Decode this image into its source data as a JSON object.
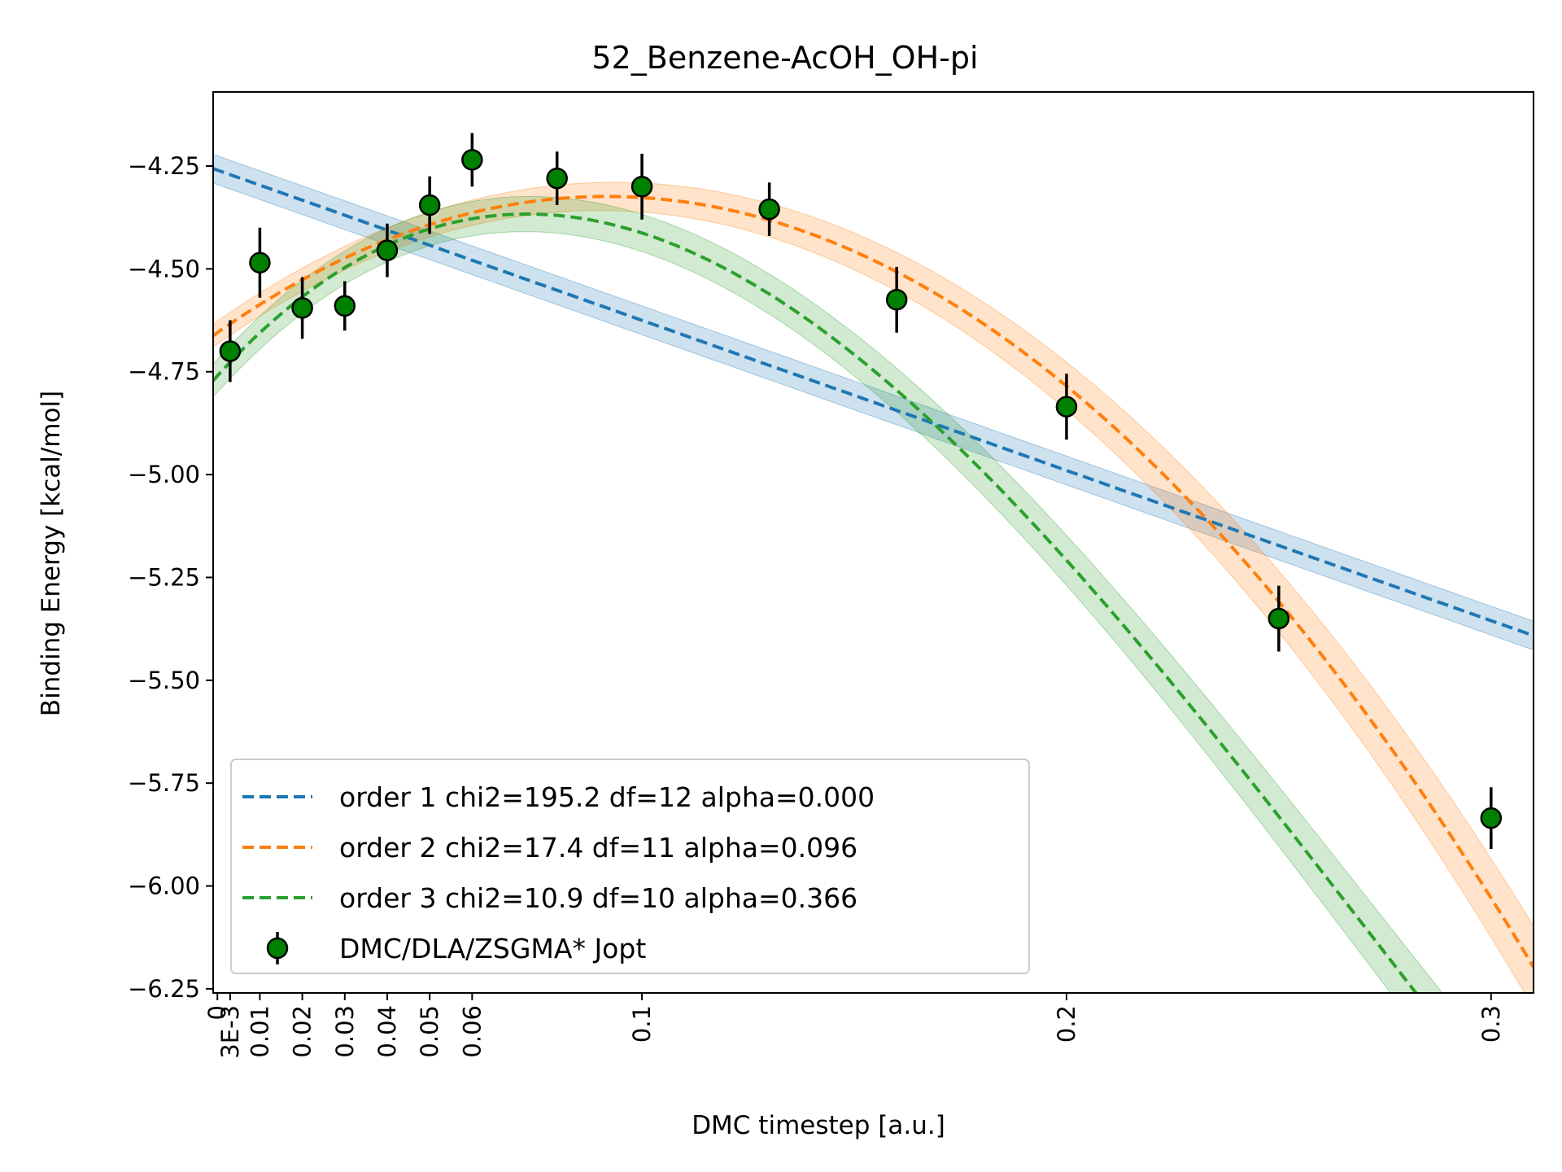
{
  "chart_data": {
    "type": "scatter",
    "title": "52_Benzene-AcOH_OH-pi",
    "xlabel": "DMC timestep [a.u.]",
    "ylabel": "Binding Energy [kcal/mol]",
    "xlim": [
      -0.001,
      0.31
    ],
    "ylim": [
      -6.26,
      -4.07
    ],
    "grid": false,
    "legend_position": "lower-left",
    "x_ticks": [
      {
        "value": 0,
        "label": "0"
      },
      {
        "value": 0.003,
        "label": "3E-3"
      },
      {
        "value": 0.01,
        "label": "0.01"
      },
      {
        "value": 0.02,
        "label": "0.02"
      },
      {
        "value": 0.03,
        "label": "0.03"
      },
      {
        "value": 0.04,
        "label": "0.04"
      },
      {
        "value": 0.05,
        "label": "0.05"
      },
      {
        "value": 0.06,
        "label": "0.06"
      },
      {
        "value": 0.1,
        "label": "0.1"
      },
      {
        "value": 0.2,
        "label": "0.2"
      },
      {
        "value": 0.3,
        "label": "0.3"
      }
    ],
    "y_ticks": [
      {
        "value": -4.25,
        "label": "−4.25"
      },
      {
        "value": -4.5,
        "label": "−4.50"
      },
      {
        "value": -4.75,
        "label": "−4.75"
      },
      {
        "value": -5.0,
        "label": "−5.00"
      },
      {
        "value": -5.25,
        "label": "−5.25"
      },
      {
        "value": -5.5,
        "label": "−5.50"
      },
      {
        "value": -5.75,
        "label": "−5.75"
      },
      {
        "value": -6.0,
        "label": "−6.00"
      },
      {
        "value": -6.25,
        "label": "−6.25"
      }
    ],
    "data_series": {
      "name": "DMC/DLA/ZSGMA* Jopt",
      "color": "#008000",
      "points": [
        {
          "x": 0.003,
          "y": -4.7,
          "err": 0.075
        },
        {
          "x": 0.01,
          "y": -4.485,
          "err": 0.085
        },
        {
          "x": 0.02,
          "y": -4.595,
          "err": 0.075
        },
        {
          "x": 0.03,
          "y": -4.59,
          "err": 0.06
        },
        {
          "x": 0.04,
          "y": -4.455,
          "err": 0.065
        },
        {
          "x": 0.05,
          "y": -4.345,
          "err": 0.07
        },
        {
          "x": 0.06,
          "y": -4.235,
          "err": 0.065
        },
        {
          "x": 0.08,
          "y": -4.28,
          "err": 0.065
        },
        {
          "x": 0.1,
          "y": -4.3,
          "err": 0.08
        },
        {
          "x": 0.13,
          "y": -4.355,
          "err": 0.065
        },
        {
          "x": 0.16,
          "y": -4.575,
          "err": 0.08
        },
        {
          "x": 0.2,
          "y": -4.835,
          "err": 0.08
        },
        {
          "x": 0.25,
          "y": -5.35,
          "err": 0.08
        },
        {
          "x": 0.3,
          "y": -5.835,
          "err": 0.075
        }
      ]
    },
    "fits": [
      {
        "name": "order 1 chi2=195.2 df=12 alpha=0.000",
        "color": "#1f77b4",
        "band_width": 0.035,
        "coefficients": [
          -4.26,
          -3.65
        ]
      },
      {
        "name": "order 2 chi2=17.4 df=11 alpha=0.096",
        "color": "#ff7f0e",
        "band_width": 0.028,
        "band_growth": 0.25,
        "coefficients": [
          -4.655,
          7.215,
          -39.32
        ]
      },
      {
        "name": "order 3 chi2=10.9 df=10 alpha=0.366",
        "color": "#2ca02c",
        "band_width": 0.04,
        "band_growth": 0.13,
        "coefficients": [
          -4.76,
          11.36,
          -89.75,
          108.7
        ]
      }
    ]
  }
}
